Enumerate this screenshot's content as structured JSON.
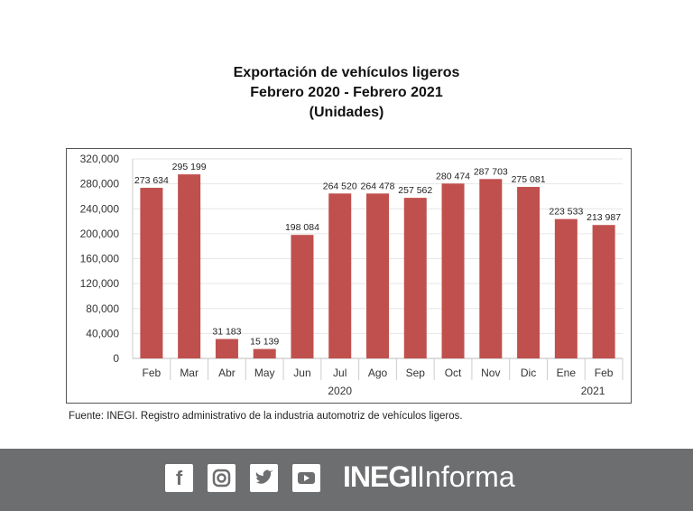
{
  "chart_data": {
    "type": "bar",
    "title": [
      "Exportación de vehículos ligeros",
      "Febrero 2020 - Febrero 2021",
      "(Unidades)"
    ],
    "categories": [
      "Feb",
      "Mar",
      "Abr",
      "May",
      "Jun",
      "Jul",
      "Ago",
      "Sep",
      "Oct",
      "Nov",
      "Dic",
      "Ene",
      "Feb"
    ],
    "year_labels": [
      {
        "label": "2020",
        "category_index": 5
      },
      {
        "label": "2021",
        "category_index": 12
      }
    ],
    "values": [
      273634,
      295199,
      31183,
      15139,
      198084,
      264520,
      264478,
      257562,
      280474,
      287703,
      275081,
      223533,
      213987
    ],
    "data_labels": [
      "273 634",
      "295 199",
      "31 183",
      "15 139",
      "198 084",
      "264 520",
      "264 478",
      "257 562",
      "280 474",
      "287 703",
      "275 081",
      "223 533",
      "213 987"
    ],
    "yticks": [
      0,
      40000,
      80000,
      120000,
      160000,
      200000,
      240000,
      280000,
      320000
    ],
    "ytick_labels": [
      "0",
      "40,000",
      "80,000",
      "120,000",
      "160,000",
      "200,000",
      "240,000",
      "280,000",
      "320,000"
    ],
    "ylim": [
      0,
      320000
    ],
    "grid": true,
    "bar_color": "#c0504d",
    "xlabel": "",
    "ylabel": ""
  },
  "source": "Fuente: INEGI. Registro administrativo de la industria automotriz de vehículos ligeros.",
  "footer": {
    "social_icons": [
      "facebook-icon",
      "instagram-icon",
      "twitter-icon",
      "youtube-icon"
    ],
    "brand": "INEGI Informa",
    "brand_bold": "INEGI",
    "brand_light": "Informa",
    "background": "#6d6e70"
  }
}
